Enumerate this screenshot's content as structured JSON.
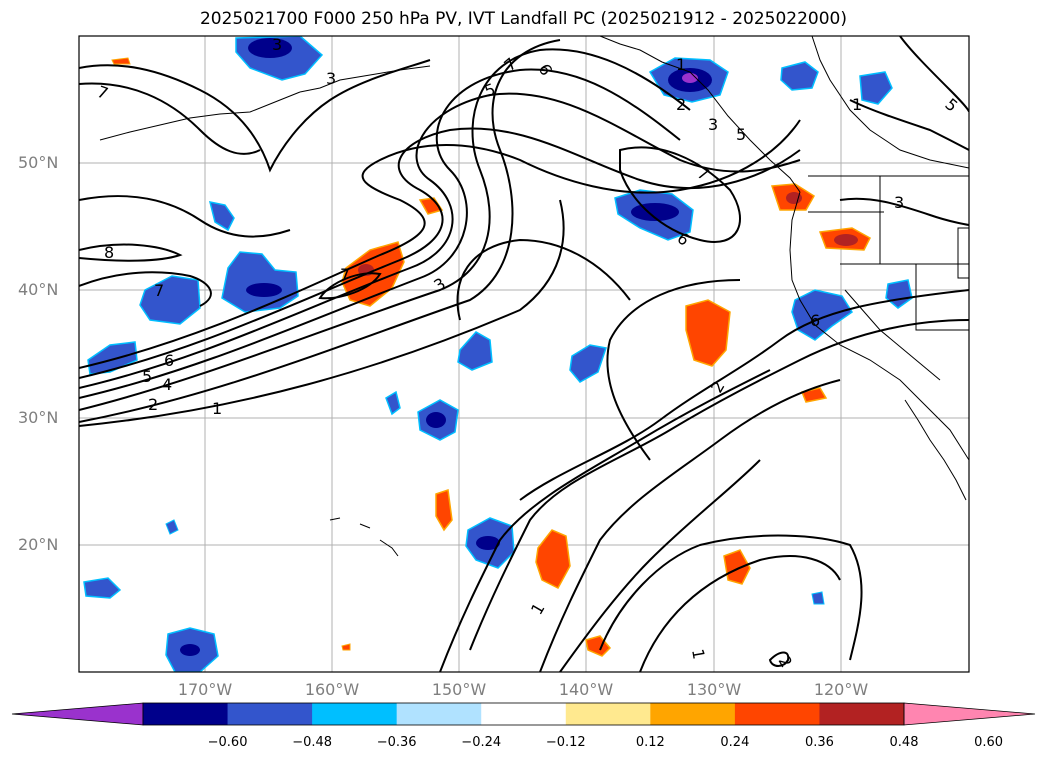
{
  "title": "2025021700 F000 250 hPa PV, IVT Landfall PC (2025021912 - 2025022000)",
  "lat_labels": [
    "50°N",
    "40°N",
    "30°N",
    "20°N"
  ],
  "lon_labels": [
    "170°W",
    "160°W",
    "150°W",
    "140°W",
    "130°W",
    "120°W"
  ],
  "colorbar": {
    "ticks": [
      "−0.60",
      "−0.48",
      "−0.36",
      "−0.24",
      "−0.12",
      "0.12",
      "0.24",
      "0.36",
      "0.48",
      "0.60"
    ],
    "colors": [
      "#9a32cd",
      "#00008b",
      "#3355cc",
      "#00bfff",
      "#b0e2ff",
      "#ffffff",
      "#ffe98f",
      "#ffa500",
      "#ff4500",
      "#b22222",
      "#ff85b0"
    ]
  },
  "contour_labels": [
    "7",
    "6",
    "5",
    "7",
    "3",
    "3",
    "1",
    "5",
    "2",
    "7",
    "6",
    "3",
    "8",
    "7",
    "7",
    "3",
    "6",
    "5",
    "4",
    "2",
    "1",
    "2",
    "1",
    "1",
    "2",
    "3",
    "5",
    "1",
    "6"
  ]
}
